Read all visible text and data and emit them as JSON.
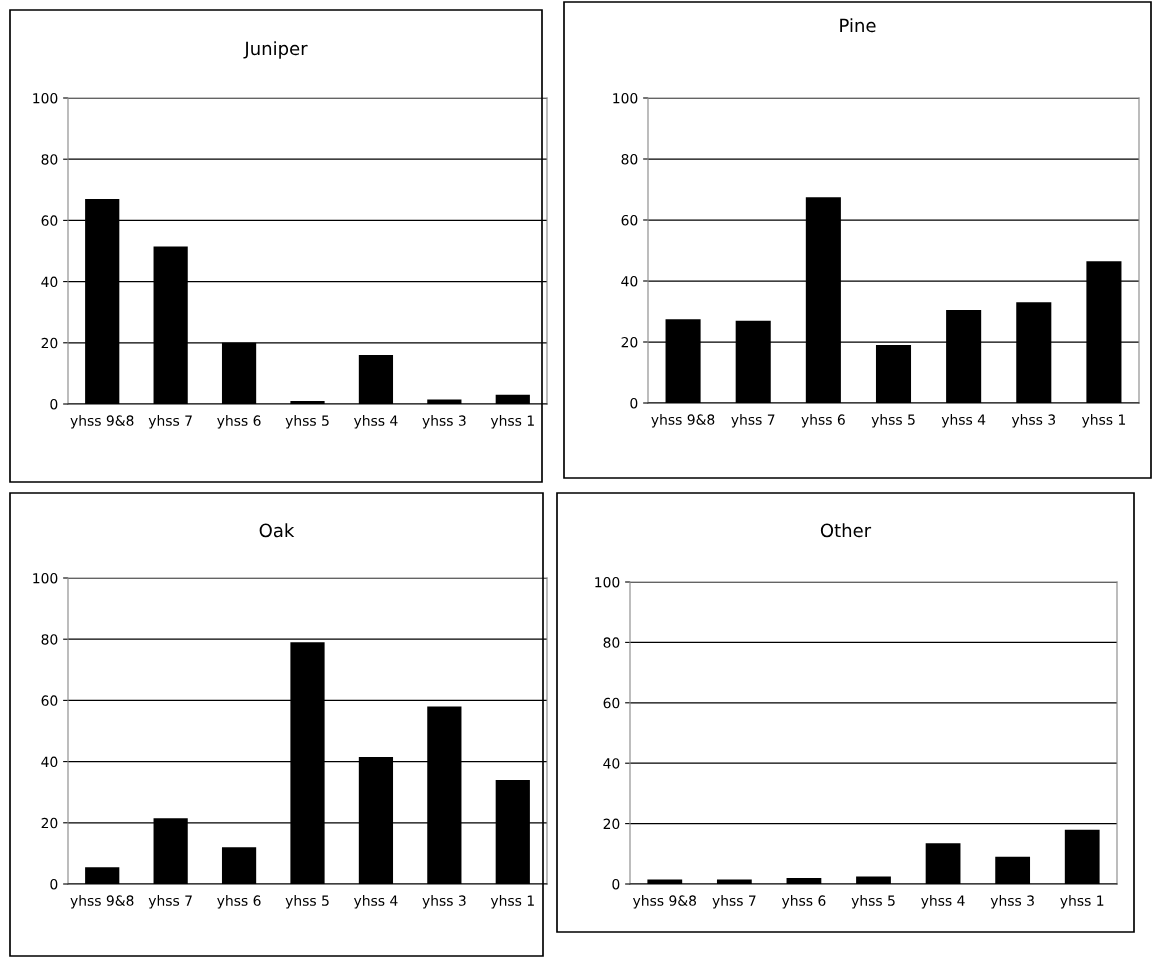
{
  "chart_data": [
    {
      "type": "bar",
      "title": "Juniper",
      "categories": [
        "yhss 9&8",
        "yhss 7",
        "yhss 6",
        "yhss 5",
        "yhss 4",
        "yhss 3",
        "yhss 1"
      ],
      "values": [
        67,
        51.5,
        20,
        1,
        16,
        1.5,
        3
      ],
      "color": "#000000",
      "ylim": [
        0,
        100
      ],
      "yticks": [
        0,
        20,
        40,
        60,
        80,
        100
      ],
      "grid": "y"
    },
    {
      "type": "bar",
      "title": "Pine",
      "categories": [
        "yhss 9&8",
        "yhss 7",
        "yhss 6",
        "yhss 5",
        "yhss 4",
        "yhss 3",
        "yhss 1"
      ],
      "values": [
        27.5,
        27,
        67.5,
        19,
        30.5,
        33,
        46.5
      ],
      "color": "#000000",
      "ylim": [
        0,
        100
      ],
      "yticks": [
        0,
        20,
        40,
        60,
        80,
        100
      ],
      "grid": "y"
    },
    {
      "type": "bar",
      "title": "Oak",
      "categories": [
        "yhss 9&8",
        "yhss 7",
        "yhss 6",
        "yhss 5",
        "yhss 4",
        "yhss 3",
        "yhss 1"
      ],
      "values": [
        5.5,
        21.5,
        12,
        79,
        41.5,
        58,
        34
      ],
      "color": "#000000",
      "ylim": [
        0,
        100
      ],
      "yticks": [
        0,
        20,
        40,
        60,
        80,
        100
      ],
      "grid": "y"
    },
    {
      "type": "bar",
      "title": "Other",
      "categories": [
        "yhss 9&8",
        "yhss 7",
        "yhss 6",
        "yhss 5",
        "yhss 4",
        "yhss 3",
        "yhss 1"
      ],
      "values": [
        1.5,
        1.5,
        2,
        2.5,
        13.5,
        9,
        18
      ],
      "color": "#000000",
      "ylim": [
        0,
        100
      ],
      "yticks": [
        0,
        20,
        40,
        60,
        80,
        100
      ],
      "grid": "y"
    }
  ]
}
